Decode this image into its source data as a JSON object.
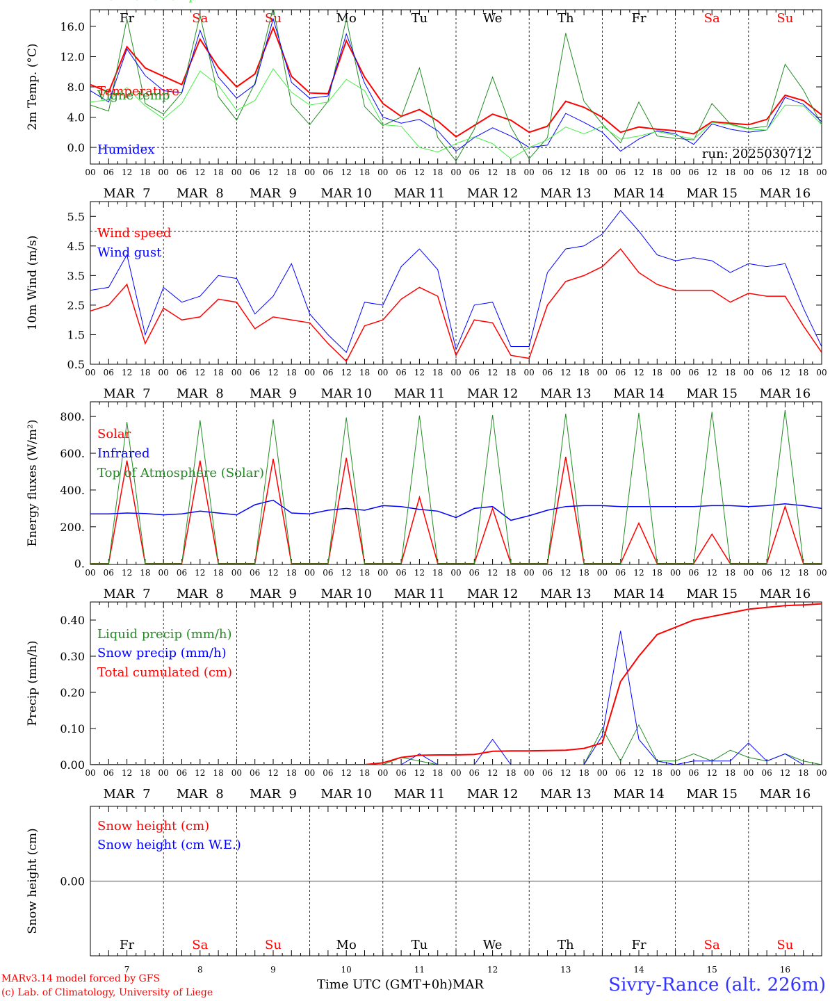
{
  "days": [
    {
      "wd": "Fr",
      "n": "7",
      "c": "#000000"
    },
    {
      "wd": "Sa",
      "n": "8",
      "c": "#ff0000"
    },
    {
      "wd": "Su",
      "n": "9",
      "c": "#ff0000"
    },
    {
      "wd": "Mo",
      "n": "10",
      "c": "#000000"
    },
    {
      "wd": "Tu",
      "n": "11",
      "c": "#000000"
    },
    {
      "wd": "We",
      "n": "12",
      "c": "#000000"
    },
    {
      "wd": "Th",
      "n": "13",
      "c": "#000000"
    },
    {
      "wd": "Fr",
      "n": "14",
      "c": "#000000"
    },
    {
      "wd": "Sa",
      "n": "15",
      "c": "#ff0000"
    },
    {
      "wd": "Su",
      "n": "16",
      "c": "#ff0000"
    }
  ],
  "hour_ticks": [
    "00",
    "06",
    "12",
    "18"
  ],
  "last_hour_tick": "00",
  "date_labels": [
    "MAR  7",
    "MAR  8",
    "MAR  9",
    "MAR 10",
    "MAR 11",
    "MAR 12",
    "MAR 13",
    "MAR 14",
    "MAR 15",
    "MAR 16"
  ],
  "footer": {
    "model_line": "MARv3.14 model forced by GFS",
    "lab_line": "(c) Lab. of Climatology, University of Liege",
    "axis_title": "Time UTC (GMT+0h)",
    "month": "MAR",
    "station": "Sivry-Rance (alt. 226m)"
  },
  "chart_data": [
    {
      "type": "line",
      "ylabel": "2m Temp. (°C)",
      "ylim": [
        -2.2,
        18.2
      ],
      "yticks": [
        0.0,
        4.0,
        8.0,
        12.0,
        16.0
      ],
      "ytick_labels": [
        "0.0",
        "4.0",
        "8.0",
        "12.0",
        "16.0"
      ],
      "ref_line": 0,
      "show_weekdays": true,
      "annotation": "run: 2025030712",
      "x_hours": [
        0,
        6,
        12,
        18,
        24,
        30,
        36,
        42,
        48,
        54,
        60,
        66,
        72,
        78,
        84,
        90,
        96,
        102,
        108,
        114,
        120,
        126,
        132,
        138,
        144,
        150,
        156,
        162,
        168,
        174,
        180,
        186,
        192,
        198,
        204,
        210,
        216,
        222,
        228,
        234,
        240
      ],
      "series": [
        {
          "name": "Temperature",
          "color": "#ff0000",
          "width": 2,
          "values": [
            8.3,
            7.3,
            13.3,
            10.5,
            9.4,
            8.3,
            14.3,
            10.6,
            8.0,
            9.7,
            15.8,
            9.4,
            7.2,
            7.1,
            14.1,
            9.3,
            5.8,
            4.1,
            5.0,
            3.5,
            1.4,
            2.9,
            4.4,
            3.6,
            2.0,
            2.8,
            6.1,
            5.3,
            4.0,
            2.0,
            2.7,
            2.4,
            2.2,
            1.8,
            3.4,
            3.2,
            3.0,
            3.7,
            6.9,
            6.2,
            4.3
          ]
        },
        {
          "name": "Vigne temp",
          "color": "#228b22",
          "width": 1,
          "values": [
            5.6,
            4.8,
            17.0,
            5.8,
            4.4,
            7.2,
            17.5,
            6.7,
            3.6,
            8.5,
            18.5,
            5.7,
            3.0,
            6.1,
            17.0,
            5.4,
            2.9,
            4.0,
            10.5,
            1.3,
            -1.8,
            2.4,
            9.3,
            2.7,
            -1.5,
            1.3,
            15.1,
            6.1,
            3.1,
            0.6,
            6.0,
            1.5,
            1.2,
            1.0,
            5.8,
            3.1,
            2.5,
            2.8,
            11.0,
            7.6,
            3.0
          ]
        },
        {
          "name": "Humidex",
          "color": "#0000ff",
          "width": 1,
          "values": [
            7.5,
            6.0,
            13.0,
            9.5,
            7.5,
            7.2,
            15.5,
            9.3,
            6.5,
            8.3,
            17.0,
            8.6,
            6.5,
            6.8,
            15.0,
            8.5,
            4.0,
            3.2,
            3.7,
            2.2,
            -0.5,
            1.3,
            2.6,
            1.5,
            0.0,
            0.3,
            4.5,
            3.3,
            2.0,
            -0.5,
            1.1,
            2.2,
            1.8,
            0.4,
            3.1,
            2.4,
            2.0,
            2.3,
            6.6,
            5.7,
            3.4
          ]
        },
        {
          "name": "DewPoint Temp",
          "color": "#44ee44",
          "width": 1,
          "values": [
            6.0,
            6.3,
            7.9,
            5.5,
            3.8,
            5.8,
            10.1,
            8.2,
            4.9,
            6.2,
            10.4,
            7.3,
            5.6,
            6.0,
            9.0,
            7.5,
            3.0,
            2.8,
            0.0,
            -0.6,
            0.5,
            1.4,
            0.5,
            -1.5,
            0.0,
            1.0,
            2.7,
            1.8,
            2.8,
            1.1,
            1.5,
            2.1,
            1.6,
            1.1,
            3.3,
            3.0,
            2.4,
            2.3,
            5.6,
            5.5,
            3.0
          ]
        }
      ]
    },
    {
      "type": "line",
      "ylabel": "10m Wind (m/s)",
      "ylim": [
        0.5,
        6.0
      ],
      "yticks": [
        0.5,
        1.5,
        2.5,
        3.5,
        4.5,
        5.5
      ],
      "ytick_labels": [
        "0.5",
        "1.5",
        "2.5",
        "3.5",
        "4.5",
        "5.5"
      ],
      "ref_line": 5,
      "show_weekdays": false,
      "x_hours": [
        0,
        6,
        12,
        18,
        24,
        30,
        36,
        42,
        48,
        54,
        60,
        66,
        72,
        78,
        84,
        90,
        96,
        102,
        108,
        114,
        120,
        126,
        132,
        138,
        144,
        150,
        156,
        162,
        168,
        174,
        180,
        186,
        192,
        198,
        204,
        210,
        216,
        222,
        228,
        234,
        240
      ],
      "series": [
        {
          "name": "Wind speed",
          "color": "#ff0000",
          "width": 1.5,
          "values": [
            2.3,
            2.5,
            3.2,
            1.2,
            2.4,
            2.0,
            2.1,
            2.7,
            2.6,
            1.7,
            2.1,
            2.0,
            1.9,
            1.2,
            0.6,
            1.8,
            2.0,
            2.7,
            3.1,
            2.8,
            0.8,
            2.0,
            1.9,
            0.8,
            0.7,
            2.5,
            3.3,
            3.5,
            3.8,
            4.4,
            3.6,
            3.2,
            3.0,
            3.0,
            3.0,
            2.6,
            2.9,
            2.8,
            2.8,
            1.8,
            0.9
          ]
        },
        {
          "name": "Wind gust",
          "color": "#0000ff",
          "width": 1,
          "values": [
            3.0,
            3.1,
            4.2,
            1.5,
            3.1,
            2.6,
            2.8,
            3.5,
            3.4,
            2.2,
            2.8,
            3.9,
            2.2,
            1.5,
            0.9,
            2.6,
            2.5,
            3.8,
            4.4,
            3.7,
            1.0,
            2.5,
            2.6,
            1.1,
            1.1,
            3.6,
            4.4,
            4.5,
            4.9,
            5.7,
            5.0,
            4.2,
            4.0,
            4.1,
            4.0,
            3.6,
            3.9,
            3.8,
            3.9,
            2.4,
            1.1
          ]
        }
      ]
    },
    {
      "type": "line",
      "ylabel": "Energy fluxes (W/m²)",
      "ylim": [
        -5,
        880
      ],
      "yticks": [
        0,
        200,
        400,
        600,
        800
      ],
      "ytick_labels": [
        "0.",
        "200.",
        "400.",
        "600.",
        "800."
      ],
      "ref_line": null,
      "show_weekdays": false,
      "x_hours": [
        0,
        6,
        12,
        18,
        24,
        30,
        36,
        42,
        48,
        54,
        60,
        66,
        72,
        78,
        84,
        90,
        96,
        102,
        108,
        114,
        120,
        126,
        132,
        138,
        144,
        150,
        156,
        162,
        168,
        174,
        180,
        186,
        192,
        198,
        204,
        210,
        216,
        222,
        228,
        234,
        240
      ],
      "series": [
        {
          "name": "Solar",
          "color": "#ff0000",
          "width": 1.5,
          "values": [
            0,
            0,
            560,
            0,
            0,
            0,
            560,
            0,
            0,
            0,
            570,
            0,
            0,
            0,
            575,
            0,
            0,
            0,
            360,
            0,
            0,
            0,
            300,
            0,
            0,
            0,
            580,
            0,
            0,
            0,
            220,
            0,
            0,
            0,
            160,
            0,
            0,
            0,
            310,
            0,
            0
          ]
        },
        {
          "name": "Infrared",
          "color": "#0000ff",
          "width": 1.5,
          "values": [
            270,
            270,
            275,
            272,
            265,
            270,
            285,
            275,
            265,
            320,
            345,
            275,
            270,
            290,
            300,
            290,
            315,
            310,
            295,
            285,
            250,
            300,
            310,
            235,
            260,
            290,
            310,
            315,
            315,
            310,
            310,
            310,
            310,
            310,
            315,
            315,
            310,
            315,
            325,
            315,
            300
          ]
        },
        {
          "name": "Top of Atmosphere (Solar)",
          "color": "#228b22",
          "width": 1,
          "values": [
            0,
            0,
            770,
            0,
            0,
            0,
            780,
            0,
            0,
            0,
            785,
            0,
            0,
            0,
            795,
            0,
            0,
            0,
            805,
            0,
            0,
            0,
            808,
            0,
            0,
            0,
            815,
            0,
            0,
            0,
            820,
            0,
            0,
            0,
            825,
            0,
            0,
            0,
            835,
            0,
            0
          ]
        }
      ]
    },
    {
      "type": "line",
      "ylabel": "Precip (mm/h)",
      "ylim": [
        0.0,
        0.45
      ],
      "yticks": [
        0.0,
        0.1,
        0.2,
        0.3,
        0.4
      ],
      "ytick_labels": [
        "0.00",
        "0.10",
        "0.20",
        "0.30",
        "0.40"
      ],
      "ref_line": null,
      "show_weekdays": false,
      "x_hours": [
        0,
        6,
        12,
        18,
        24,
        30,
        36,
        42,
        48,
        54,
        60,
        66,
        72,
        78,
        84,
        90,
        96,
        102,
        108,
        114,
        120,
        126,
        132,
        138,
        144,
        150,
        156,
        162,
        168,
        174,
        180,
        186,
        192,
        198,
        204,
        210,
        216,
        222,
        228,
        234,
        240
      ],
      "series": [
        {
          "name": "Liquid precip (mm/h)",
          "color": "#228b22",
          "width": 1,
          "values": [
            0,
            0,
            0,
            0,
            0,
            0,
            0,
            0,
            0,
            0,
            0,
            0,
            0,
            0,
            0,
            0,
            0,
            0.02,
            0.01,
            0,
            0,
            0,
            0,
            0,
            0,
            0,
            0,
            0,
            0.1,
            0.01,
            0.11,
            0.01,
            0.01,
            0.03,
            0.01,
            0.04,
            0.02,
            0.01,
            0.03,
            0.01,
            0
          ]
        },
        {
          "name": "Snow precip (mm/h)",
          "color": "#0000ff",
          "width": 1,
          "values": [
            0,
            0,
            0,
            0,
            0,
            0,
            0,
            0,
            0,
            0,
            0,
            0,
            0,
            0,
            0,
            0,
            0,
            0,
            0.03,
            0,
            0,
            0,
            0.07,
            0,
            0,
            0,
            0,
            0,
            0.08,
            0.37,
            0.07,
            0.01,
            0,
            0.01,
            0.01,
            0.01,
            0.06,
            0.01,
            0.03,
            0,
            0
          ]
        },
        {
          "name": "Total cumulated (cm)",
          "color": "#ff0000",
          "width": 2,
          "values": [
            0,
            0,
            0,
            0,
            0,
            0,
            0,
            0,
            0,
            0,
            0,
            0,
            0,
            0,
            0,
            0,
            0.005,
            0.02,
            0.026,
            0.027,
            0.027,
            0.028,
            0.037,
            0.038,
            0.038,
            0.039,
            0.04,
            0.045,
            0.06,
            0.23,
            0.3,
            0.36,
            0.38,
            0.4,
            0.41,
            0.42,
            0.43,
            0.435,
            0.44,
            0.442,
            0.445
          ]
        }
      ]
    },
    {
      "type": "line",
      "ylabel": "Snow height (cm)",
      "ylim": [
        -1,
        1
      ],
      "yticks": [
        0
      ],
      "ytick_labels": [
        "0.00"
      ],
      "ref_line": null,
      "show_weekdays": false,
      "x_hours": [
        0,
        240
      ],
      "series": [
        {
          "name": "Snow height (cm)",
          "color": "#ff0000",
          "width": 1,
          "values": [
            0,
            0
          ]
        },
        {
          "name": "Snow height (cm W.E.)",
          "color": "#0000ff",
          "width": 0,
          "values": [
            0,
            0
          ]
        }
      ]
    }
  ]
}
